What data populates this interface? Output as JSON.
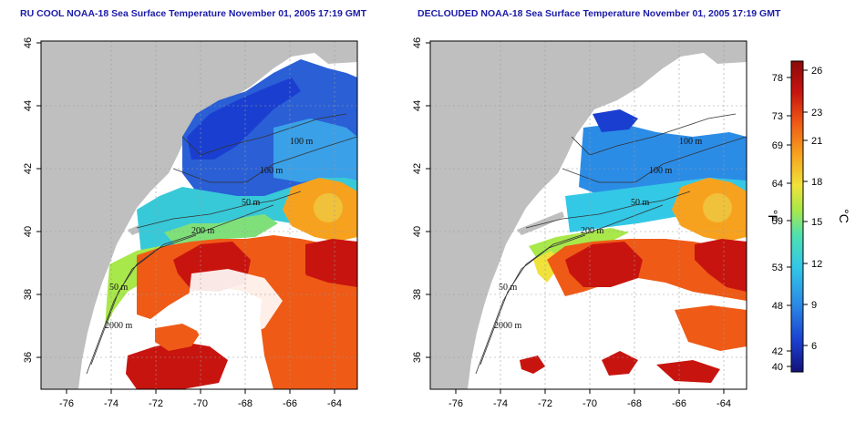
{
  "panels": [
    {
      "id": "left",
      "title": "RU COOL NOAA-18 Sea Surface Temperature November 01, 2005 17:19 GMT",
      "xticks": [
        "-76",
        "-74",
        "-72",
        "-70",
        "-68",
        "-66",
        "-64"
      ],
      "yticks": [
        "46",
        "44",
        "42",
        "40",
        "38",
        "36"
      ],
      "contour_labels": [
        "100 m",
        "100 m",
        "50 m",
        "200 m",
        "50 m",
        "2000 m"
      ]
    },
    {
      "id": "right",
      "title": "DECLOUDED NOAA-18 Sea Surface Temperature November 01, 2005 17:19 GMT",
      "xticks": [
        "-76",
        "-74",
        "-72",
        "-70",
        "-68",
        "-66",
        "-64"
      ],
      "yticks": [
        "46",
        "44",
        "42",
        "40",
        "38",
        "36"
      ],
      "contour_labels": [
        "100 m",
        "100 m",
        "50 m",
        "200 m",
        "50 m",
        "2000 m"
      ]
    }
  ],
  "colorbar": {
    "fahrenheit_ticks": [
      "78",
      "73",
      "69",
      "64",
      "59",
      "53",
      "48",
      "42",
      "40"
    ],
    "celsius_ticks": [
      "26",
      "23",
      "21",
      "18",
      "15",
      "12",
      "9",
      "6"
    ],
    "fahrenheit_unit": "°F",
    "celsius_unit": "°C",
    "colors": [
      "#14127a",
      "#1a3fd0",
      "#2b8ce6",
      "#33c8e6",
      "#4fe0b0",
      "#a8e84a",
      "#f0e23a",
      "#f7a21f",
      "#ef5a16",
      "#c8140f",
      "#8a0a0a"
    ]
  },
  "colors": {
    "land": "#bfbfbf",
    "no_data": "#ffffff",
    "title": "#1a1aa8"
  }
}
